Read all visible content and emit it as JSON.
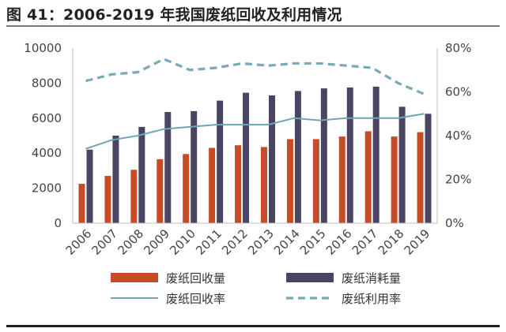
{
  "title": "图 41：2006-2019 年我国废纸回收及利用情况",
  "chart_data": {
    "type": "bar",
    "categories": [
      "2006",
      "2007",
      "2008",
      "2009",
      "2010",
      "2011",
      "2012",
      "2013",
      "2014",
      "2015",
      "2016",
      "2017",
      "2018",
      "2019"
    ],
    "series": [
      {
        "name": "废纸回收量",
        "kind": "bar",
        "axis": "left",
        "color": "#c64b27",
        "values": [
          2250,
          2700,
          3050,
          3650,
          3950,
          4300,
          4450,
          4350,
          4800,
          4800,
          4950,
          5250,
          4950,
          5200
        ]
      },
      {
        "name": "废纸消耗量",
        "kind": "bar",
        "axis": "left",
        "color": "#4b4462",
        "values": [
          4200,
          5000,
          5500,
          6350,
          6400,
          7000,
          7450,
          7300,
          7550,
          7700,
          7750,
          7800,
          6650,
          6250
        ]
      },
      {
        "name": "废纸回收率",
        "kind": "line",
        "axis": "right",
        "color": "#6fa6b6",
        "dash": "solid",
        "values": [
          34,
          38,
          40,
          43,
          44,
          45,
          45,
          45,
          48,
          47,
          48,
          48,
          48,
          50
        ]
      },
      {
        "name": "废纸利用率",
        "kind": "line",
        "axis": "right",
        "color": "#79aab8",
        "dash": "dashed",
        "values": [
          65,
          68,
          69,
          75,
          70,
          71,
          73,
          72,
          73,
          73,
          72,
          71,
          64,
          59
        ]
      }
    ],
    "left_axis": {
      "ylim": [
        0,
        10000
      ],
      "ticks": [
        "0",
        "2000",
        "4000",
        "6000",
        "8000",
        "10000"
      ]
    },
    "right_axis": {
      "ylim": [
        0,
        80
      ],
      "ticks": [
        "0%",
        "20%",
        "40%",
        "60%",
        "80%"
      ]
    },
    "grid": false,
    "legend_placement": "bottom"
  }
}
